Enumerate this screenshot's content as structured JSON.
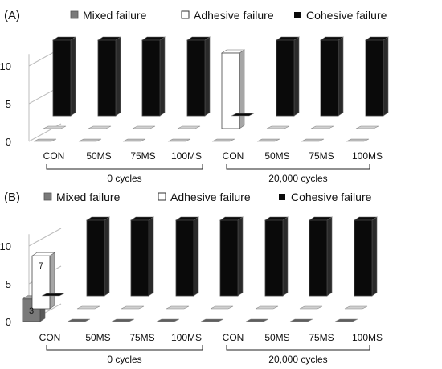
{
  "chart_data": [
    {
      "type": "bar",
      "panel_label": "(A)",
      "legend": [
        {
          "name": "Mixed failure",
          "swatch": "mixed"
        },
        {
          "name": "Adhesive failure",
          "swatch": "adhesive"
        },
        {
          "name": "Cohesive failure",
          "swatch": "cohesive"
        }
      ],
      "categories": [
        "CON",
        "50MS",
        "75MS",
        "100MS",
        "CON",
        "50MS",
        "75MS",
        "100MS"
      ],
      "groups": [
        {
          "label": "0 cycles",
          "from": 0,
          "to": 3
        },
        {
          "label": "20,000 cycles",
          "from": 4,
          "to": 7
        }
      ],
      "series": [
        {
          "name": "Mixed failure",
          "values": [
            0,
            0,
            0,
            0,
            0,
            0,
            0,
            0
          ]
        },
        {
          "name": "Adhesive failure",
          "values": [
            0,
            0,
            0,
            0,
            10,
            0,
            0,
            0
          ]
        },
        {
          "name": "Cohesive failure",
          "values": [
            10,
            10,
            10,
            10,
            0,
            10,
            10,
            10
          ]
        }
      ],
      "yticks": [
        "0",
        "5",
        "10"
      ],
      "ylim": [
        0,
        12
      ]
    },
    {
      "type": "bar",
      "panel_label": "(B)",
      "legend": [
        {
          "name": "Mixed failure",
          "swatch": "mixed"
        },
        {
          "name": "Adhesive failure",
          "swatch": "adhesive"
        },
        {
          "name": "Cohesive failure",
          "swatch": "cohesive"
        }
      ],
      "categories": [
        "CON",
        "50MS",
        "75MS",
        "100MS",
        "CON",
        "50MS",
        "75MS",
        "100MS"
      ],
      "groups": [
        {
          "label": "0 cycles",
          "from": 0,
          "to": 3
        },
        {
          "label": "20,000 cycles",
          "from": 4,
          "to": 7
        }
      ],
      "series": [
        {
          "name": "Mixed failure",
          "values": [
            3,
            0,
            0,
            0,
            0,
            0,
            0,
            0
          ]
        },
        {
          "name": "Adhesive failure",
          "values": [
            7,
            0,
            0,
            0,
            0,
            0,
            0,
            0
          ]
        },
        {
          "name": "Cohesive failure",
          "values": [
            0,
            10,
            10,
            10,
            10,
            10,
            10,
            10
          ]
        }
      ],
      "data_labels": [
        {
          "series": "Mixed failure",
          "index": 0,
          "text": "3"
        },
        {
          "series": "Adhesive failure",
          "index": 0,
          "text": "7"
        }
      ],
      "yticks": [
        "0",
        "5",
        "10"
      ],
      "ylim": [
        0,
        12
      ]
    }
  ],
  "colors": {
    "mixed_front": "#7a7a7a",
    "mixed_top": "#a6a6a6",
    "mixed_side": "#5a5a5a",
    "adhesive_front": "#ffffff",
    "adhesive_side": "#a6a6a6",
    "cohesive_front": "#0a0a0a",
    "cohesive_side": "#2a2a2a",
    "floor_mixed_A": "#b9b9b9",
    "floor_mixed_B": "#5e5e5e",
    "floor_back": "#d0d0d0",
    "axis_lines": "#bdbdbd",
    "text": "#111111"
  }
}
